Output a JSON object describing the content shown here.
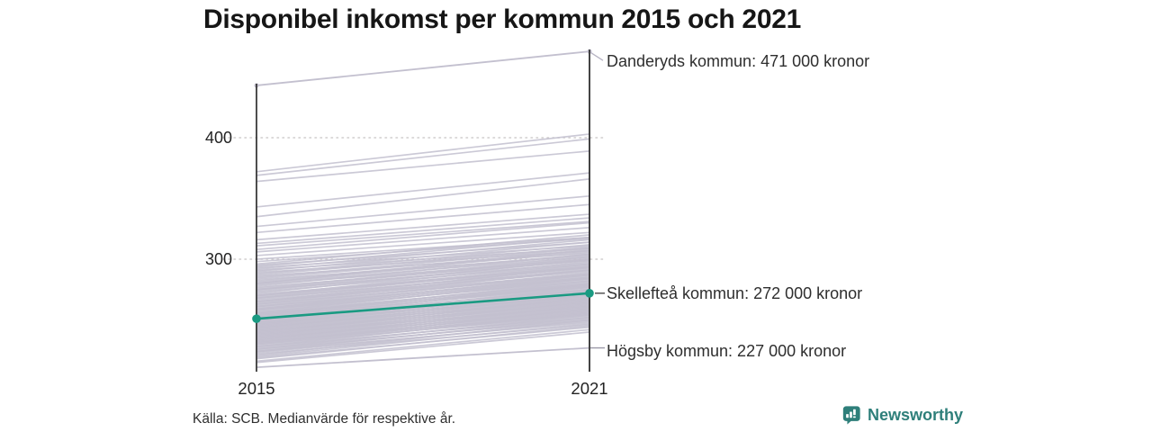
{
  "title": "Disponibel inkomst per kommun 2015 och 2021",
  "source": "Källa: SCB. Medianvärde för respektive år.",
  "brand": {
    "name": "Newsworthy",
    "color": "#2e7f7a"
  },
  "axis": {
    "x_ticks": [
      "2015",
      "2021"
    ],
    "y_ticks": [
      "400",
      "300"
    ]
  },
  "chart_data": {
    "type": "line",
    "subtype": "slopegraph",
    "x": [
      2015,
      2021
    ],
    "unit": "tusen kronor",
    "title": "Disponibel inkomst per kommun 2015 och 2021",
    "ylim": [
      205,
      480
    ],
    "yticks": [
      400,
      300
    ],
    "grid": "dotted horizontal lines at y ticks",
    "legend": "none",
    "colors": {
      "highlight": "#1a9a82",
      "background_line": "#c3c0cf",
      "axis": "#2f2f2f"
    },
    "highlight": {
      "name": "Skellefteå kommun",
      "values": [
        251,
        272
      ],
      "label": "Skellefteå kommun: 272 000 kronor"
    },
    "labeled": [
      {
        "name": "Danderyds kommun",
        "values": [
          443,
          471
        ],
        "label": "Danderyds kommun: 471 000 kronor",
        "dots": true
      },
      {
        "name": "Högsby kommun",
        "values": [
          211,
          227
        ],
        "label": "Högsby kommun: 227 000 kronor",
        "dots": false
      }
    ],
    "background_lines": [
      [
        372,
        403
      ],
      [
        369,
        399
      ],
      [
        364,
        389
      ],
      [
        343,
        371
      ],
      [
        335,
        366
      ],
      [
        327,
        352
      ],
      [
        322,
        345
      ],
      [
        316,
        337
      ],
      [
        313,
        334
      ],
      [
        311,
        331
      ],
      [
        308,
        330
      ],
      [
        306,
        326
      ],
      [
        303,
        322
      ],
      [
        300,
        318
      ],
      [
        298,
        317
      ],
      [
        296,
        320
      ],
      [
        295,
        314
      ],
      [
        294,
        318
      ],
      [
        293,
        311
      ],
      [
        292,
        316
      ],
      [
        291,
        309
      ],
      [
        290,
        314
      ],
      [
        289,
        307
      ],
      [
        288,
        312
      ],
      [
        287,
        310
      ],
      [
        286,
        305
      ],
      [
        285,
        309
      ],
      [
        284,
        307
      ],
      [
        283,
        303
      ],
      [
        282,
        306
      ],
      [
        281,
        304
      ],
      [
        280,
        302
      ],
      [
        280,
        308
      ],
      [
        279,
        300
      ],
      [
        278,
        304
      ],
      [
        277,
        299
      ],
      [
        276,
        302
      ],
      [
        275,
        297
      ],
      [
        275,
        301
      ],
      [
        274,
        299
      ],
      [
        273,
        296
      ],
      [
        272,
        300
      ],
      [
        271,
        294
      ],
      [
        270,
        298
      ],
      [
        270,
        293
      ],
      [
        269,
        296
      ],
      [
        268,
        291
      ],
      [
        268,
        295
      ],
      [
        267,
        293
      ],
      [
        266,
        290
      ],
      [
        265,
        294
      ],
      [
        265,
        288
      ],
      [
        264,
        292
      ],
      [
        263,
        287
      ],
      [
        263,
        291
      ],
      [
        262,
        289
      ],
      [
        261,
        285
      ],
      [
        261,
        288
      ],
      [
        260,
        286
      ],
      [
        259,
        284
      ],
      [
        259,
        287
      ],
      [
        258,
        282
      ],
      [
        258,
        285
      ],
      [
        257,
        283
      ],
      [
        256,
        280
      ],
      [
        256,
        284
      ],
      [
        255,
        281
      ],
      [
        255,
        278
      ],
      [
        254,
        282
      ],
      [
        254,
        279
      ],
      [
        253,
        277
      ],
      [
        253,
        280
      ],
      [
        252,
        278
      ],
      [
        252,
        275
      ],
      [
        251,
        279
      ],
      [
        250,
        276
      ],
      [
        250,
        273
      ],
      [
        249,
        277
      ],
      [
        249,
        274
      ],
      [
        248,
        272
      ],
      [
        248,
        275
      ],
      [
        247,
        273
      ],
      [
        247,
        270
      ],
      [
        246,
        274
      ],
      [
        246,
        271
      ],
      [
        245,
        269
      ],
      [
        245,
        272
      ],
      [
        244,
        270
      ],
      [
        244,
        267
      ],
      [
        243,
        271
      ],
      [
        243,
        268
      ],
      [
        242,
        266
      ],
      [
        242,
        269
      ],
      [
        241,
        267
      ],
      [
        241,
        264
      ],
      [
        240,
        268
      ],
      [
        240,
        265
      ],
      [
        239,
        263
      ],
      [
        239,
        266
      ],
      [
        238,
        264
      ],
      [
        238,
        261
      ],
      [
        237,
        265
      ],
      [
        237,
        262
      ],
      [
        236,
        260
      ],
      [
        236,
        263
      ],
      [
        235,
        261
      ],
      [
        235,
        258
      ],
      [
        234,
        262
      ],
      [
        234,
        259
      ],
      [
        233,
        257
      ],
      [
        233,
        260
      ],
      [
        232,
        258
      ],
      [
        232,
        255
      ],
      [
        231,
        259
      ],
      [
        231,
        256
      ],
      [
        230,
        254
      ],
      [
        230,
        257
      ],
      [
        229,
        255
      ],
      [
        228,
        252
      ],
      [
        228,
        256
      ],
      [
        227,
        253
      ],
      [
        226,
        250
      ],
      [
        226,
        254
      ],
      [
        225,
        251
      ],
      [
        224,
        248
      ],
      [
        224,
        252
      ],
      [
        223,
        249
      ],
      [
        222,
        246
      ],
      [
        221,
        250
      ],
      [
        220,
        247
      ],
      [
        219,
        244
      ],
      [
        218,
        245
      ],
      [
        216,
        242
      ],
      [
        215,
        240
      ]
    ]
  }
}
